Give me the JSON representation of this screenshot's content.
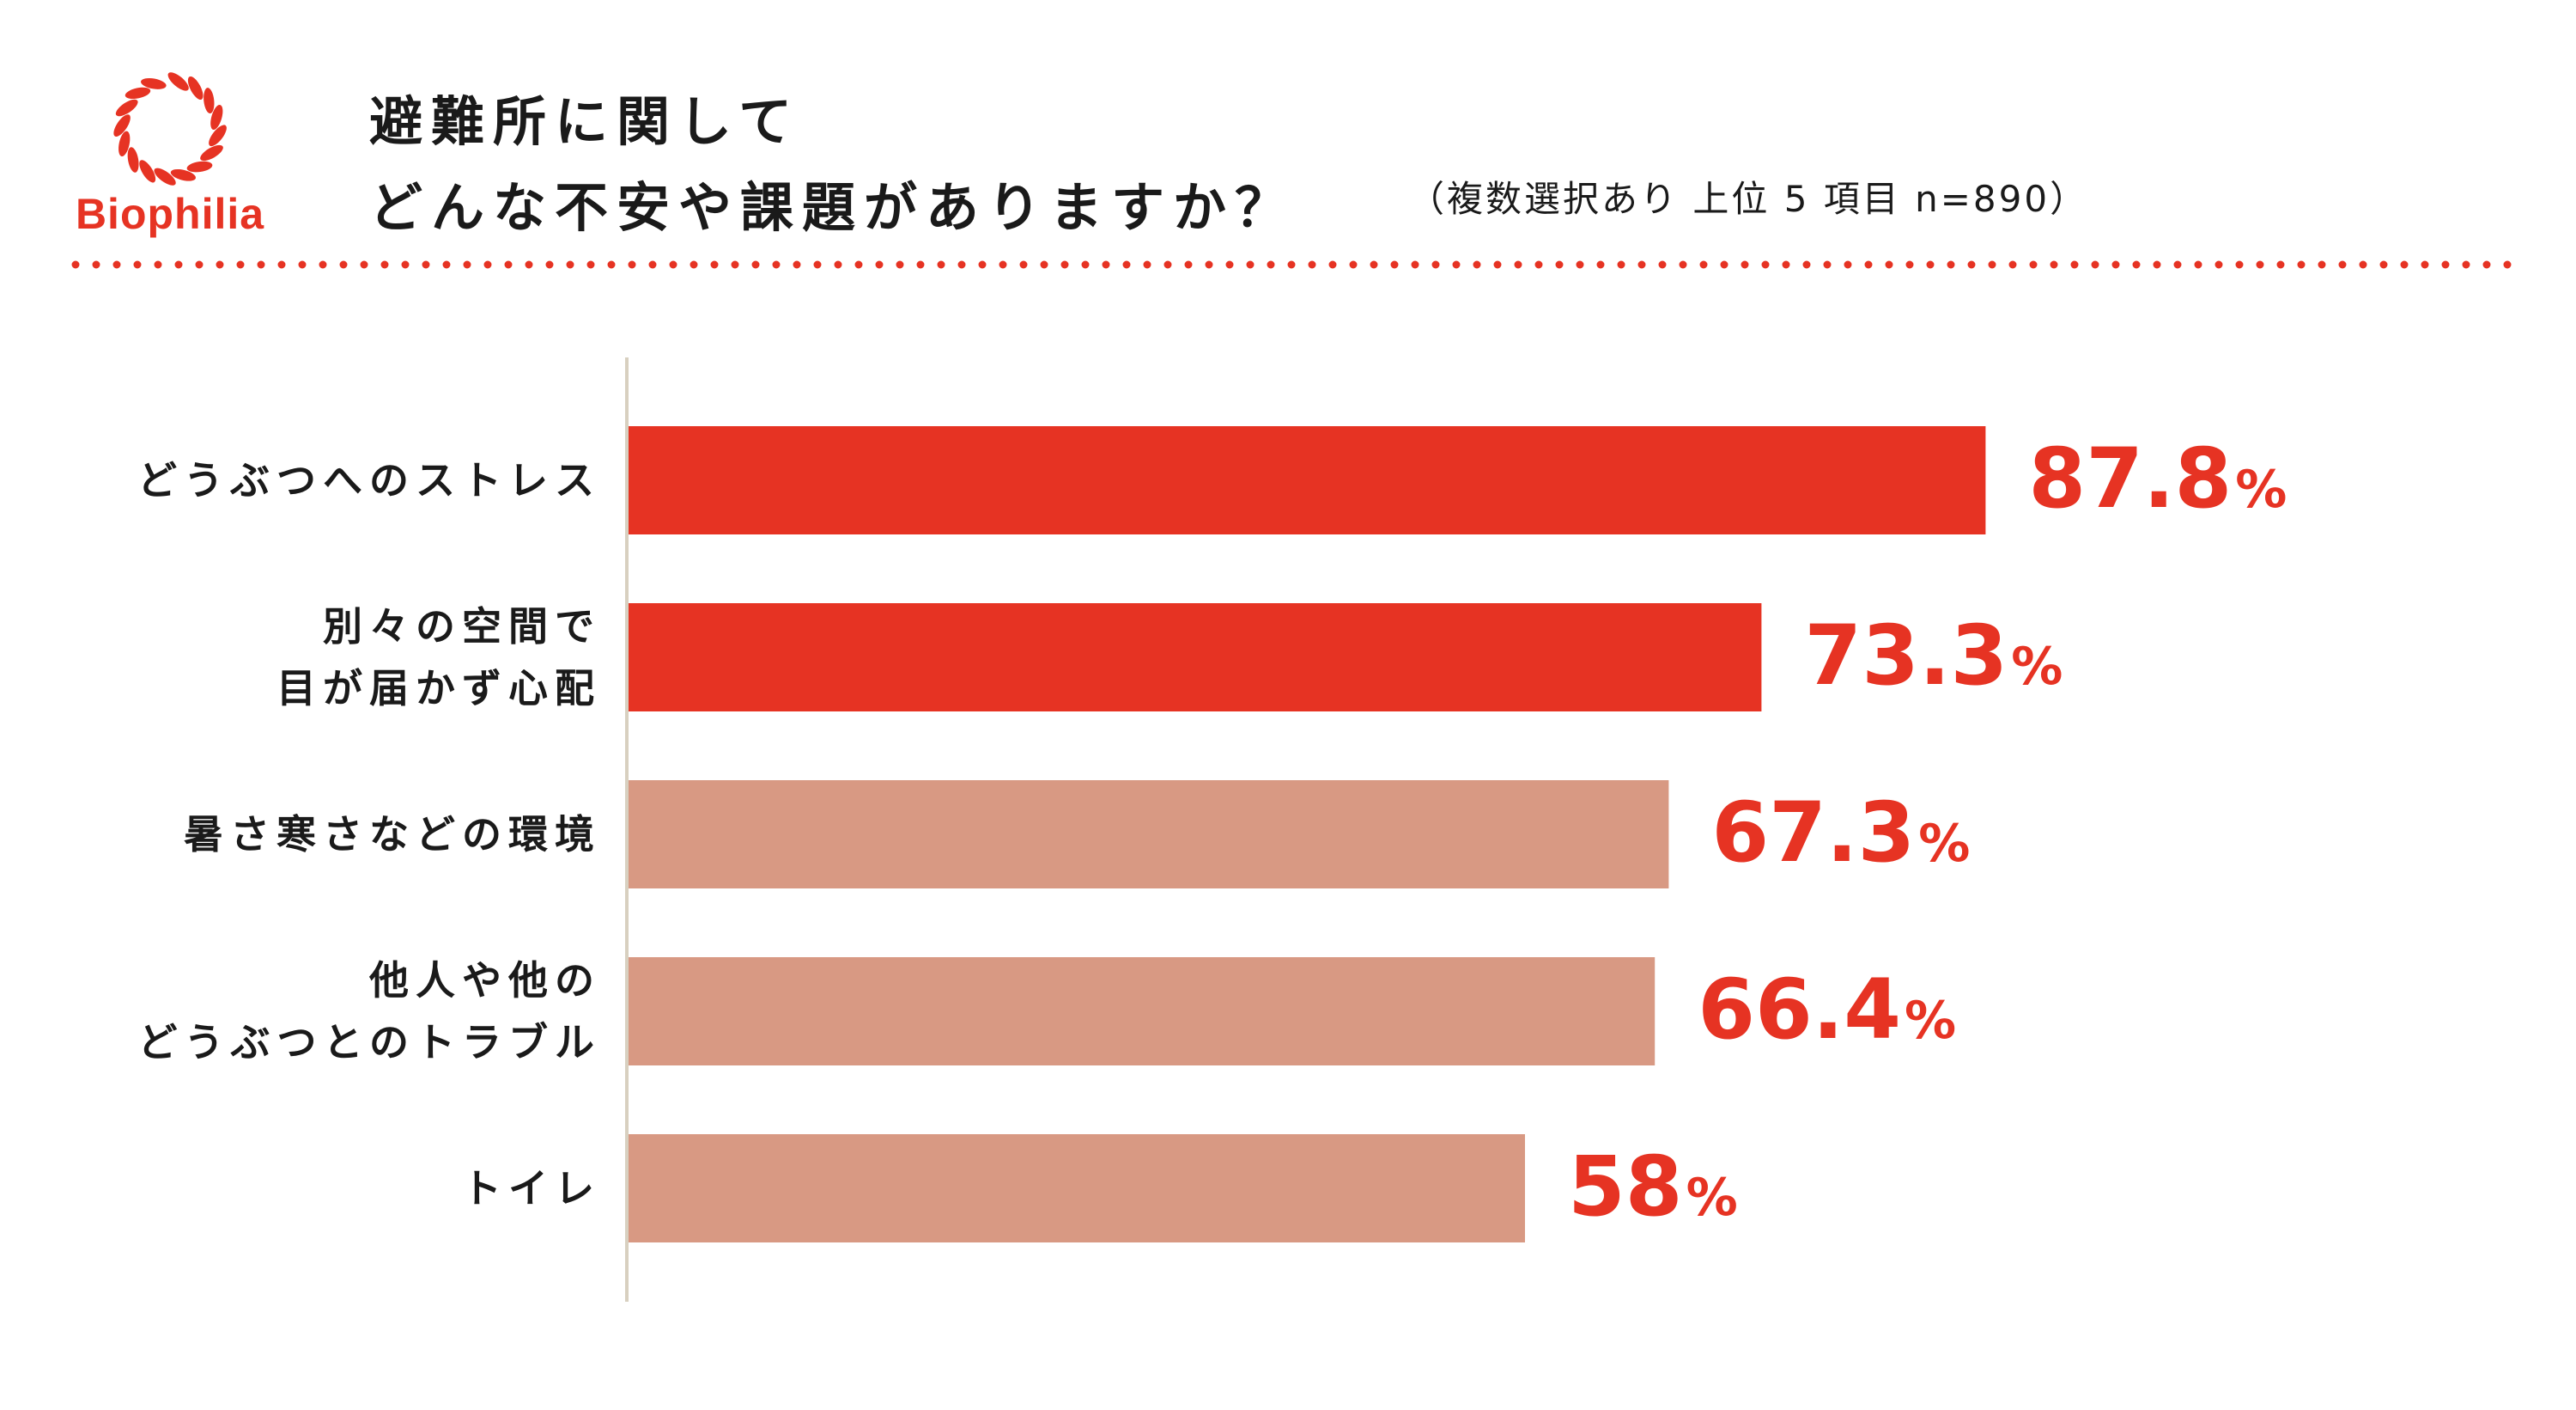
{
  "brand": {
    "name": "Biophilia",
    "color": "#e63323"
  },
  "title_lines": [
    "避難所に関して",
    "どんな不安や課題がありますか？"
  ],
  "subtitle": "（複数選択あり 上位 5 項目 n=890）",
  "chart_data": {
    "type": "bar",
    "orientation": "horizontal",
    "title": "避難所に関して どんな不安や課題がありますか？",
    "subtitle": "（複数選択あり 上位 5 項目 n=890）",
    "unit": "%",
    "xlim": [
      0,
      100
    ],
    "grid": false,
    "categories": [
      [
        "どうぶつへのストレス"
      ],
      [
        "別々の空間で",
        "目が届かず心配"
      ],
      [
        "暑さ寒さなどの環境"
      ],
      [
        "他人や他の",
        "どうぶつとのトラブル"
      ],
      [
        "トイレ"
      ]
    ],
    "values": [
      87.8,
      73.3,
      67.3,
      66.4,
      58
    ],
    "value_labels": [
      "87.8",
      "73.3",
      "67.3",
      "66.4",
      "58"
    ],
    "bar_colors": [
      "#e63323",
      "#e63323",
      "#d89983",
      "#d89983",
      "#d89983"
    ],
    "value_label_color": "#e63323"
  }
}
